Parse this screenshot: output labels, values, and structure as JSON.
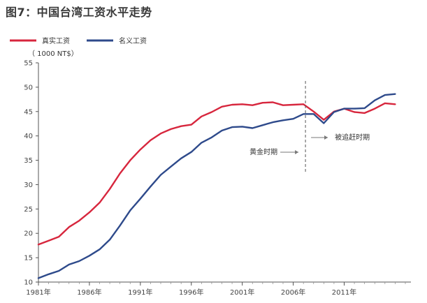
{
  "figure_title": "图7：中国台湾工资水平走势",
  "chart_data": {
    "type": "line",
    "unit_label": "（ 1000 NT$）",
    "ylim": [
      10,
      55
    ],
    "y_ticks": [
      10,
      15,
      20,
      25,
      30,
      35,
      40,
      45,
      50,
      55
    ],
    "xlim": [
      1981,
      2017
    ],
    "x_ticks": [
      {
        "year": 1981,
        "label": "1981年"
      },
      {
        "year": 1986,
        "label": "1986年"
      },
      {
        "year": 1991,
        "label": "1991年"
      },
      {
        "year": 1996,
        "label": "1996年"
      },
      {
        "year": 2001,
        "label": "2001年"
      },
      {
        "year": 2006,
        "label": "2006年"
      },
      {
        "year": 2011,
        "label": "2011年"
      }
    ],
    "legend_position": "top-left",
    "grid": false,
    "series": [
      {
        "name": "真实工资",
        "color": "#d7263d",
        "points": [
          [
            1981,
            17.7
          ],
          [
            1982,
            18.5
          ],
          [
            1983,
            19.3
          ],
          [
            1984,
            21.3
          ],
          [
            1985,
            22.6
          ],
          [
            1986,
            24.3
          ],
          [
            1987,
            26.3
          ],
          [
            1988,
            29.1
          ],
          [
            1989,
            32.3
          ],
          [
            1990,
            35.0
          ],
          [
            1991,
            37.2
          ],
          [
            1992,
            39.1
          ],
          [
            1993,
            40.5
          ],
          [
            1994,
            41.4
          ],
          [
            1995,
            42.0
          ],
          [
            1996,
            42.3
          ],
          [
            1997,
            44.0
          ],
          [
            1998,
            44.9
          ],
          [
            1999,
            46.0
          ],
          [
            2000,
            46.4
          ],
          [
            2001,
            46.5
          ],
          [
            2002,
            46.3
          ],
          [
            2003,
            46.8
          ],
          [
            2004,
            46.9
          ],
          [
            2005,
            46.3
          ],
          [
            2006,
            46.4
          ],
          [
            2007,
            46.5
          ],
          [
            2008,
            45.0
          ],
          [
            2009,
            43.3
          ],
          [
            2010,
            45.0
          ],
          [
            2011,
            45.6
          ],
          [
            2012,
            44.9
          ],
          [
            2013,
            44.7
          ],
          [
            2014,
            45.6
          ],
          [
            2015,
            46.7
          ],
          [
            2016,
            46.5
          ]
        ]
      },
      {
        "name": "名义工资",
        "color": "#2e4a8b",
        "points": [
          [
            1981,
            10.8
          ],
          [
            1982,
            11.6
          ],
          [
            1983,
            12.3
          ],
          [
            1984,
            13.6
          ],
          [
            1985,
            14.3
          ],
          [
            1986,
            15.4
          ],
          [
            1987,
            16.7
          ],
          [
            1988,
            18.7
          ],
          [
            1989,
            21.6
          ],
          [
            1990,
            24.7
          ],
          [
            1991,
            27.1
          ],
          [
            1992,
            29.6
          ],
          [
            1993,
            32.0
          ],
          [
            1994,
            33.7
          ],
          [
            1995,
            35.4
          ],
          [
            1996,
            36.7
          ],
          [
            1997,
            38.6
          ],
          [
            1998,
            39.7
          ],
          [
            1999,
            41.1
          ],
          [
            2000,
            41.8
          ],
          [
            2001,
            41.9
          ],
          [
            2002,
            41.6
          ],
          [
            2003,
            42.2
          ],
          [
            2004,
            42.8
          ],
          [
            2005,
            43.2
          ],
          [
            2006,
            43.5
          ],
          [
            2007,
            44.5
          ],
          [
            2008,
            44.5
          ],
          [
            2009,
            42.6
          ],
          [
            2010,
            44.9
          ],
          [
            2011,
            45.6
          ],
          [
            2012,
            45.6
          ],
          [
            2013,
            45.7
          ],
          [
            2014,
            47.3
          ],
          [
            2015,
            48.4
          ],
          [
            2016,
            48.6
          ]
        ]
      }
    ],
    "divider_year": 2007.2,
    "annotations": [
      {
        "text": "黄金时期",
        "direction": "right"
      },
      {
        "text": "被追赶时期",
        "direction": "right"
      }
    ]
  }
}
